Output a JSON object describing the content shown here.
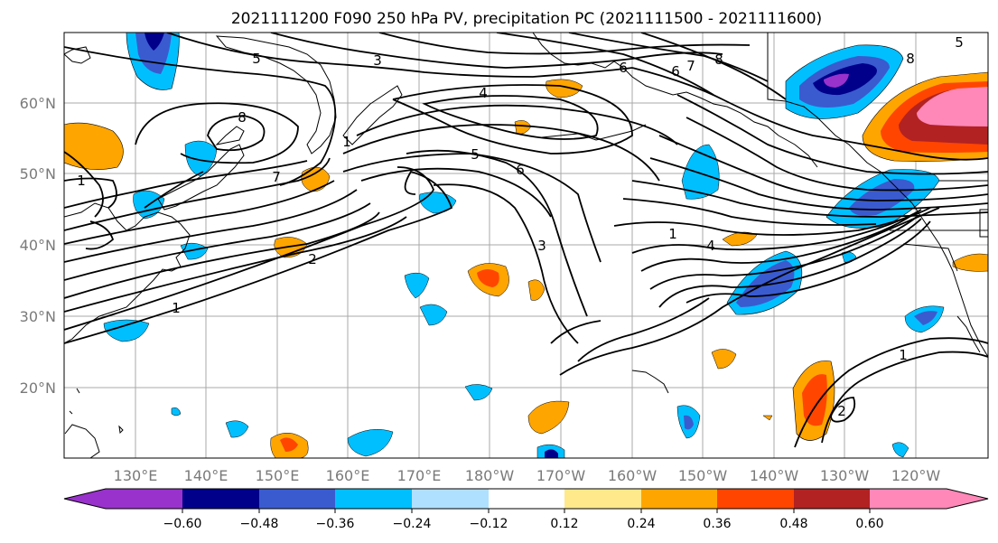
{
  "title": "2021111200 F090 250 hPa PV, precipitation PC (2021111500 - 2021111600)",
  "axes": {
    "x_tick_labels": [
      "130°E",
      "140°E",
      "150°E",
      "160°E",
      "170°E",
      "180°W",
      "170°W",
      "160°W",
      "150°W",
      "140°W",
      "130°W",
      "120°W"
    ],
    "y_tick_labels": [
      "20°N",
      "30°N",
      "40°N",
      "50°N",
      "60°N"
    ],
    "gridlines": true
  },
  "colorbar": {
    "colors": [
      "#9932cc",
      "#00008b",
      "#3a5bd0",
      "#00bfff",
      "#b0e0ff",
      "#ffffff",
      "#ffe98a",
      "#ffa500",
      "#ff4500",
      "#b22222",
      "#ff88b8"
    ],
    "tick_labels": [
      "−0.60",
      "−0.48",
      "−0.36",
      "−0.24",
      "−0.12",
      "0.12",
      "0.24",
      "0.36",
      "0.48",
      "0.60"
    ],
    "extend": "both"
  },
  "contour_labels": [
    "5",
    "3",
    "4",
    "8",
    "7",
    "6",
    "8",
    "5",
    "6",
    "7",
    "8",
    "1",
    "2",
    "3",
    "1",
    "1",
    "4",
    "5",
    "6",
    "1",
    "2",
    "1"
  ],
  "fill_colors": {
    "pos_light": "#ffe98a",
    "pos": "#ffa500",
    "pos_strong": "#ff4500",
    "pos_dark": "#b22222",
    "pos_max": "#ff88b8",
    "neg_light": "#b0e0ff",
    "neg": "#00bfff",
    "neg_strong": "#3a5bd0",
    "neg_dark": "#00008b",
    "neg_max": "#9932cc"
  }
}
